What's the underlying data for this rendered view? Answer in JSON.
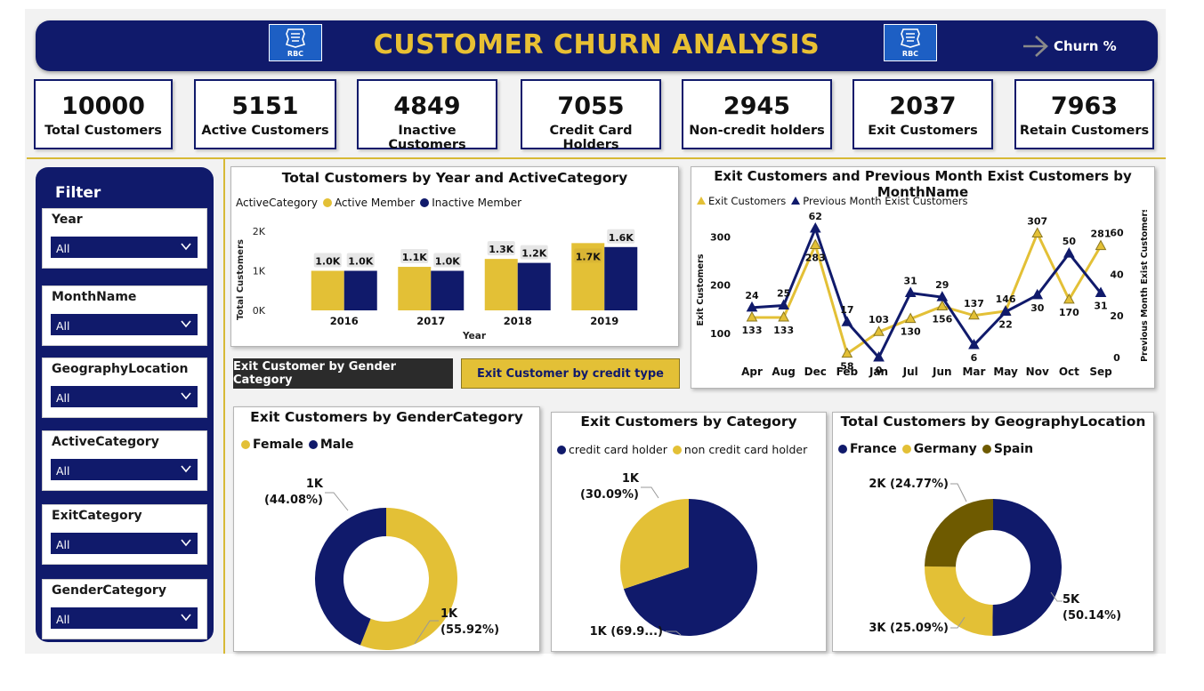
{
  "header": {
    "title": "CUSTOMER CHURN ANALYSIS",
    "churn_link": "Churn %",
    "logo_text": "RBC"
  },
  "kpis": [
    {
      "value": "10000",
      "label": "Total Customers"
    },
    {
      "value": "5151",
      "label": "Active Customers"
    },
    {
      "value": "4849",
      "label": "Inactive Customers"
    },
    {
      "value": "7055",
      "label": "Credit Card Holders"
    },
    {
      "value": "2945",
      "label": "Non-credit holders"
    },
    {
      "value": "2037",
      "label": "Exit Customers"
    },
    {
      "value": "7963",
      "label": "Retain Customers"
    }
  ],
  "filter": {
    "title": "Filter",
    "slicers": [
      {
        "label": "Year",
        "value": "All"
      },
      {
        "label": "MonthName",
        "value": "All"
      },
      {
        "label": "GeographyLocation",
        "value": "All"
      },
      {
        "label": "ActiveCategory",
        "value": "All"
      },
      {
        "label": "ExitCategory",
        "value": "All"
      },
      {
        "label": "GenderCategory",
        "value": "All"
      }
    ]
  },
  "buttons": {
    "gender": "Exit Customer by Gender Category",
    "credit": "Exit Customer by credit type"
  },
  "colors": {
    "navy": "#101a6b",
    "gold": "#e3c036",
    "olive": "#6e5a00"
  },
  "chart_data": [
    {
      "type": "bar",
      "title": "Total Customers by Year and ActiveCategory",
      "legend_title": "ActiveCategory",
      "categories": [
        "2016",
        "2017",
        "2018",
        "2019"
      ],
      "series": [
        {
          "name": "Active Member",
          "values": [
            1000,
            1100,
            1300,
            1700
          ],
          "labels": [
            "1.0K",
            "1.1K",
            "1.3K",
            "1.7K"
          ]
        },
        {
          "name": "Inactive Member",
          "values": [
            1000,
            1000,
            1200,
            1600
          ],
          "labels": [
            "1.0K",
            "1.0K",
            "1.2K",
            "1.6K"
          ]
        }
      ],
      "xlabel": "Year",
      "ylabel": "Total Customers",
      "ylim": [
        0,
        2000
      ],
      "yticks": [
        "0K",
        "1K",
        "2K"
      ]
    },
    {
      "type": "line",
      "title": "Exit Customers and Previous Month Exist Customers by MonthName",
      "categories": [
        "Apr",
        "Aug",
        "Dec",
        "Feb",
        "Jan",
        "Jul",
        "Jun",
        "Mar",
        "May",
        "Nov",
        "Oct",
        "Sep"
      ],
      "series": [
        {
          "name": "Exit Customers",
          "axis": "left",
          "values": [
            133,
            133,
            283,
            58,
            103,
            130,
            156,
            137,
            146,
            307,
            170,
            281
          ]
        },
        {
          "name": "Previous Month Exist Customers",
          "axis": "right",
          "values": [
            24,
            25,
            62,
            17,
            0,
            31,
            29,
            6,
            22,
            30,
            50,
            31
          ]
        }
      ],
      "ylabel": "Exit Customers",
      "y2label": "Previous Month Exist Customers",
      "ylim": [
        50,
        330
      ],
      "y2lim": [
        0,
        65
      ],
      "yticks": [
        "100",
        "200",
        "300"
      ],
      "y2ticks": [
        "0",
        "20",
        "40",
        "60"
      ]
    },
    {
      "type": "pie",
      "title": "Exit Customers by GenderCategory",
      "labels": [
        "Female",
        "Male"
      ],
      "values": [
        55.92,
        44.08
      ],
      "data_labels": [
        [
          "1K",
          "(55.92%)"
        ],
        [
          "1K",
          "(44.08%)"
        ]
      ]
    },
    {
      "type": "pie",
      "title": "Exit Customers by Category",
      "labels": [
        "credit card holder",
        "non credit card holder"
      ],
      "values": [
        69.91,
        30.09
      ],
      "data_labels": [
        [
          "1K (69.9...)"
        ],
        [
          "1K",
          "(30.09%)"
        ]
      ]
    },
    {
      "type": "pie",
      "title": "Total Customers by GeographyLocation",
      "labels": [
        "France",
        "Germany",
        "Spain"
      ],
      "values": [
        50.14,
        25.09,
        24.77
      ],
      "data_labels": [
        [
          "5K",
          "(50.14%)"
        ],
        [
          "3K (25.09%)"
        ],
        [
          "2K (24.77%)"
        ]
      ]
    }
  ]
}
